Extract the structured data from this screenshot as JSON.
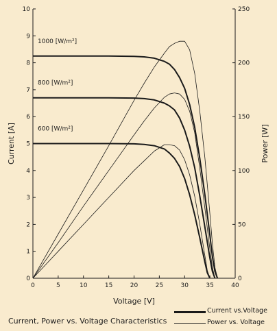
{
  "page": {
    "background": "#f9ebce"
  },
  "chart_data": {
    "type": "line",
    "title": "Current, Power vs. Voltage Characteristics",
    "xlabel": "Voltage [V]",
    "ylabel": "Current [A]",
    "y2label": "Power [W]",
    "xlim": [
      0,
      40
    ],
    "ylim": [
      0,
      10
    ],
    "y2lim": [
      0,
      250
    ],
    "xticks": [
      "0",
      "5",
      "10",
      "15",
      "20",
      "25",
      "30",
      "35",
      "40"
    ],
    "yticks": [
      "0",
      "1",
      "2",
      "3",
      "4",
      "5",
      "6",
      "7",
      "8",
      "9",
      "10"
    ],
    "y2ticks": [
      "0",
      "50",
      "100",
      "150",
      "200",
      "250"
    ],
    "grid": false,
    "line_color": "#1a1a1a",
    "legend": {
      "position": "bottom-right",
      "current_label": "Current vs.Voltage",
      "power_label": "Power vs. Voltage"
    },
    "irradiance_labels": [
      "1000 [W/m²]",
      "800 [W/m²]",
      "600 [W/m²]"
    ],
    "current_series": [
      {
        "label": "1000 [W/m²]",
        "x": [
          0,
          5,
          10,
          15,
          20,
          22,
          24,
          26,
          27,
          28,
          29,
          30,
          31,
          32,
          33,
          34,
          35,
          35.5,
          36,
          36.5
        ],
        "y": [
          8.25,
          8.25,
          8.25,
          8.25,
          8.24,
          8.22,
          8.17,
          8.05,
          7.95,
          7.75,
          7.45,
          7.05,
          6.45,
          5.6,
          4.45,
          3.1,
          1.6,
          0.8,
          0.25,
          0
        ]
      },
      {
        "label": "800 [W/m²]",
        "x": [
          0,
          5,
          10,
          15,
          20,
          22,
          24,
          26,
          27,
          28,
          29,
          30,
          31,
          32,
          33,
          34,
          35,
          35.5,
          36
        ],
        "y": [
          6.7,
          6.7,
          6.7,
          6.7,
          6.69,
          6.67,
          6.62,
          6.5,
          6.4,
          6.25,
          5.95,
          5.5,
          4.9,
          4.1,
          3.05,
          1.9,
          0.75,
          0.25,
          0
        ]
      },
      {
        "label": "600 [W/m²]",
        "x": [
          0,
          5,
          10,
          15,
          20,
          22,
          24,
          26,
          27,
          28,
          29,
          30,
          31,
          32,
          33,
          34,
          34.5,
          35
        ],
        "y": [
          5.0,
          5.0,
          5.0,
          5.0,
          4.99,
          4.97,
          4.92,
          4.8,
          4.65,
          4.45,
          4.15,
          3.7,
          3.1,
          2.35,
          1.5,
          0.6,
          0.2,
          0
        ]
      }
    ],
    "power_series": [
      {
        "label": "1000 [W/m²]",
        "x": [
          0,
          5,
          10,
          15,
          20,
          22,
          24,
          26,
          27,
          28,
          29,
          30,
          31,
          32,
          33,
          34,
          35,
          35.5,
          36,
          36.5
        ],
        "y": [
          0,
          41,
          82,
          123,
          165,
          181,
          196,
          209,
          215,
          218,
          220,
          220,
          212,
          190,
          155,
          112,
          60,
          32,
          10,
          0
        ]
      },
      {
        "label": "800 [W/m²]",
        "x": [
          0,
          5,
          10,
          15,
          20,
          22,
          24,
          26,
          27,
          28,
          29,
          30,
          31,
          32,
          33,
          34,
          35,
          35.5,
          36
        ],
        "y": [
          0,
          33,
          67,
          100,
          133,
          146,
          158,
          168,
          171,
          172,
          171,
          166,
          155,
          135,
          102,
          65,
          27,
          10,
          0
        ]
      },
      {
        "label": "600 [W/m²]",
        "x": [
          0,
          5,
          10,
          15,
          20,
          22,
          24,
          26,
          27,
          28,
          29,
          30,
          31,
          32,
          33,
          34,
          34.5,
          35
        ],
        "y": [
          0,
          25,
          50,
          75,
          100,
          109,
          118,
          124,
          124,
          123,
          119,
          110,
          96,
          76,
          50,
          21,
          7,
          0
        ]
      }
    ]
  }
}
